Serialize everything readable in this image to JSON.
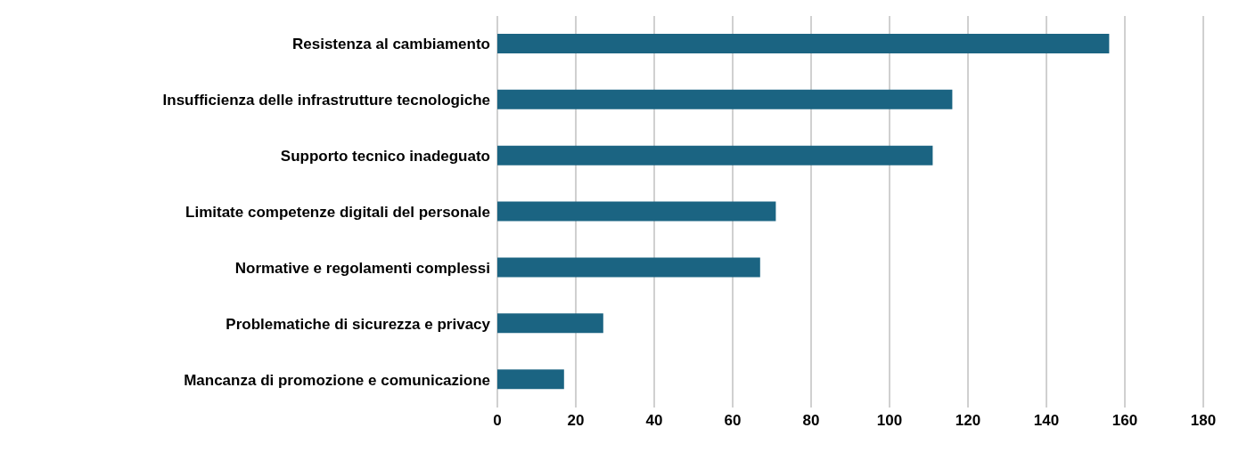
{
  "chart_data": {
    "type": "bar",
    "orientation": "horizontal",
    "categories": [
      "Resistenza al cambiamento",
      "Insufficienza delle infrastrutture tecnologiche",
      "Supporto tecnico inadeguato",
      "Limitate competenze digitali del personale",
      "Normative e regolamenti complessi",
      "Problematiche di sicurezza e privacy",
      "Mancanza di promozione e comunicazione"
    ],
    "values": [
      156,
      116,
      111,
      71,
      67,
      27,
      17
    ],
    "color": "#1b6482",
    "xlim": [
      0,
      180
    ],
    "xticks": [
      0,
      20,
      40,
      60,
      80,
      100,
      120,
      140,
      160,
      180
    ],
    "grid": "x",
    "legend": false
  }
}
